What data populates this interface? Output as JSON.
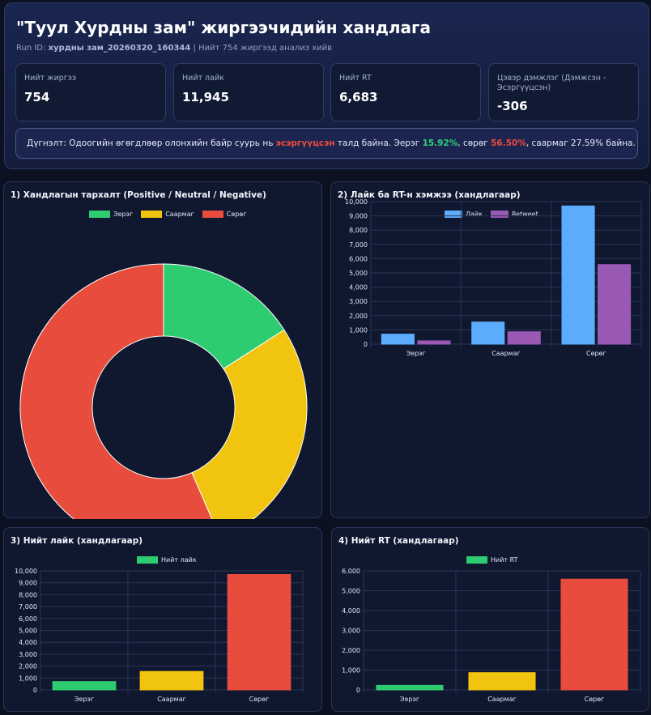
{
  "header": {
    "title": "\"Туул Хурдны зам\" жиргээчидийн хандлага",
    "run_id_label": "Run ID:",
    "run_id": "хурдны зам_20260320_160344",
    "run_note": "| Нийт 754 жиргээд анализ хийв"
  },
  "cards": [
    {
      "label": "Нийт жиргээ",
      "value": "754"
    },
    {
      "label": "Нийт лайк",
      "value": "11,945"
    },
    {
      "label": "Нийт RT",
      "value": "6,683"
    },
    {
      "label": "Цэвэр дэмжлэг (Дэмжсэн - Эсэргүүцсэн)",
      "value": "-306"
    }
  ],
  "summary": {
    "prefix": "Дүгнэлт: Одоогийн өгөгдлөөр олонхийн байр суурь нь ",
    "stance": "эсэргүүцсэн",
    "mid1": " талд байна. Эерэг ",
    "positive_pct": "15.92%",
    "mid2": ", сөрөг ",
    "negative_pct": "56.50%",
    "mid3": ", саармаг 27.59% байна."
  },
  "colors": {
    "positive": "#2ecc71",
    "neutral": "#f1c40f",
    "negative": "#e74c3c",
    "likes": "#5dadff",
    "retweets": "#9b59b6"
  },
  "chart_data": [
    {
      "type": "pie",
      "title": "1) Хандлагын тархалт (Positive / Neutral / Negative)",
      "categories": [
        "Эерэг",
        "Саармаг",
        "Сөрөг"
      ],
      "values": [
        120,
        208,
        426
      ],
      "donut": true,
      "legend": "top"
    },
    {
      "type": "bar",
      "title": "2) Лайк ба RT-н хэмжээ (хандлагаар)",
      "categories": [
        "Эерэг",
        "Саармаг",
        "Сөрөг"
      ],
      "series": [
        {
          "name": "Лайк",
          "values": [
            700,
            1550,
            9695
          ]
        },
        {
          "name": "Retweet",
          "values": [
            230,
            870,
            5583
          ]
        }
      ],
      "ylim": [
        0,
        10000
      ],
      "yticks": [
        0,
        1000,
        2000,
        3000,
        4000,
        5000,
        6000,
        7000,
        8000,
        9000,
        10000
      ],
      "grid": true,
      "legend": "top"
    },
    {
      "type": "bar",
      "title": "3) Нийт лайк (хандлагаар)",
      "categories": [
        "Эерэг",
        "Саармаг",
        "Сөрөг"
      ],
      "series": [
        {
          "name": "Нийт лайк",
          "values": [
            700,
            1550,
            9695
          ]
        }
      ],
      "ylim": [
        0,
        10000
      ],
      "yticks": [
        0,
        1000,
        2000,
        3000,
        4000,
        5000,
        6000,
        7000,
        8000,
        9000,
        10000
      ],
      "grid": true,
      "legend": "top"
    },
    {
      "type": "bar",
      "title": "4) Нийт RT (хандлагаар)",
      "categories": [
        "Эерэг",
        "Саармаг",
        "Сөрөг"
      ],
      "series": [
        {
          "name": "Нийт RT",
          "values": [
            230,
            870,
            5583
          ]
        }
      ],
      "ylim": [
        0,
        6000
      ],
      "yticks": [
        0,
        1000,
        2000,
        3000,
        4000,
        5000,
        6000
      ],
      "grid": true,
      "legend": "top"
    }
  ]
}
